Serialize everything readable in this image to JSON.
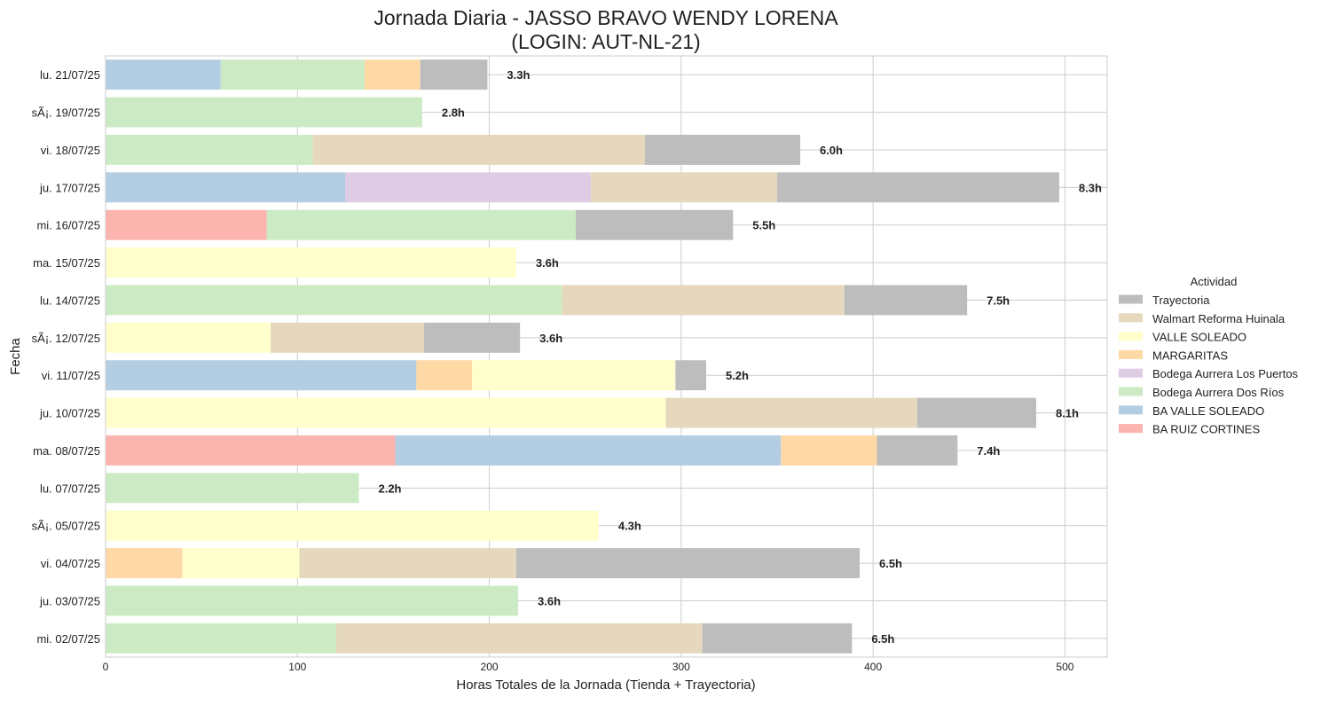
{
  "chart_data": {
    "type": "bar",
    "orientation": "horizontal",
    "stacked": true,
    "title_line1": "Jornada Diaria - JASSO BRAVO WENDY LORENA",
    "title_line2": "(LOGIN: AUT-NL-21)",
    "xlabel": "Horas Totales de la Jornada (Tienda + Trayectoria)",
    "ylabel": "Fecha",
    "xlim": [
      0,
      522
    ],
    "xticks": [
      0,
      100,
      200,
      300,
      400,
      500
    ],
    "grid": true,
    "legend": {
      "title": "Actividad",
      "position": "right",
      "entries": [
        "Trayectoria",
        "Walmart Reforma Huinala",
        "VALLE SOLEADO",
        "MARGARITAS",
        "Bodega Aurrera Los Puertos",
        "Bodega Aurrera Dos Ríos",
        "BA VALLE SOLEADO",
        "BA RUIZ CORTINES"
      ]
    },
    "colors": {
      "BA RUIZ CORTINES": "#fbb4ae",
      "BA VALLE SOLEADO": "#b3cde3",
      "Bodega Aurrera Dos Ríos": "#ccebc5",
      "Bodega Aurrera Los Puertos": "#decbe4",
      "MARGARITAS": "#fed9a6",
      "VALLE SOLEADO": "#ffffcc",
      "Walmart Reforma Huinala": "#e5d8bd",
      "Trayectoria": "#bdbdbd"
    },
    "rows": [
      {
        "date": "lu. 21/07/25",
        "label": "3.3h",
        "segments": [
          {
            "activity": "BA VALLE SOLEADO",
            "value": 60
          },
          {
            "activity": "Bodega Aurrera Dos Ríos",
            "value": 75
          },
          {
            "activity": "MARGARITAS",
            "value": 29
          },
          {
            "activity": "Trayectoria",
            "value": 35
          }
        ]
      },
      {
        "date": "sÃ¡. 19/07/25",
        "label": "2.8h",
        "segments": [
          {
            "activity": "Bodega Aurrera Dos Ríos",
            "value": 165
          }
        ]
      },
      {
        "date": "vi. 18/07/25",
        "label": "6.0h",
        "segments": [
          {
            "activity": "Bodega Aurrera Dos Ríos",
            "value": 108
          },
          {
            "activity": "Walmart Reforma Huinala",
            "value": 173
          },
          {
            "activity": "Trayectoria",
            "value": 81
          }
        ]
      },
      {
        "date": "ju. 17/07/25",
        "label": "8.3h",
        "segments": [
          {
            "activity": "BA VALLE SOLEADO",
            "value": 125
          },
          {
            "activity": "Bodega Aurrera Los Puertos",
            "value": 128
          },
          {
            "activity": "Walmart Reforma Huinala",
            "value": 97
          },
          {
            "activity": "Trayectoria",
            "value": 147
          }
        ]
      },
      {
        "date": "mi. 16/07/25",
        "label": "5.5h",
        "segments": [
          {
            "activity": "BA RUIZ CORTINES",
            "value": 84
          },
          {
            "activity": "Bodega Aurrera Dos Ríos",
            "value": 161
          },
          {
            "activity": "Trayectoria",
            "value": 82
          }
        ]
      },
      {
        "date": "ma. 15/07/25",
        "label": "3.6h",
        "segments": [
          {
            "activity": "VALLE SOLEADO",
            "value": 214
          }
        ]
      },
      {
        "date": "lu. 14/07/25",
        "label": "7.5h",
        "segments": [
          {
            "activity": "Bodega Aurrera Dos Ríos",
            "value": 238
          },
          {
            "activity": "Walmart Reforma Huinala",
            "value": 147
          },
          {
            "activity": "Trayectoria",
            "value": 64
          }
        ]
      },
      {
        "date": "sÃ¡. 12/07/25",
        "label": "3.6h",
        "segments": [
          {
            "activity": "VALLE SOLEADO",
            "value": 86
          },
          {
            "activity": "Walmart Reforma Huinala",
            "value": 80
          },
          {
            "activity": "Trayectoria",
            "value": 50
          }
        ]
      },
      {
        "date": "vi. 11/07/25",
        "label": "5.2h",
        "segments": [
          {
            "activity": "BA VALLE SOLEADO",
            "value": 162
          },
          {
            "activity": "MARGARITAS",
            "value": 29
          },
          {
            "activity": "VALLE SOLEADO",
            "value": 106
          },
          {
            "activity": "Trayectoria",
            "value": 16
          }
        ]
      },
      {
        "date": "ju. 10/07/25",
        "label": "8.1h",
        "segments": [
          {
            "activity": "VALLE SOLEADO",
            "value": 292
          },
          {
            "activity": "Walmart Reforma Huinala",
            "value": 131
          },
          {
            "activity": "Trayectoria",
            "value": 62
          }
        ]
      },
      {
        "date": "ma. 08/07/25",
        "label": "7.4h",
        "segments": [
          {
            "activity": "BA RUIZ CORTINES",
            "value": 151
          },
          {
            "activity": "BA VALLE SOLEADO",
            "value": 201
          },
          {
            "activity": "MARGARITAS",
            "value": 50
          },
          {
            "activity": "Trayectoria",
            "value": 42
          }
        ]
      },
      {
        "date": "lu. 07/07/25",
        "label": "2.2h",
        "segments": [
          {
            "activity": "Bodega Aurrera Dos Ríos",
            "value": 132
          }
        ]
      },
      {
        "date": "sÃ¡. 05/07/25",
        "label": "4.3h",
        "segments": [
          {
            "activity": "VALLE SOLEADO",
            "value": 257
          }
        ]
      },
      {
        "date": "vi. 04/07/25",
        "label": "6.5h",
        "segments": [
          {
            "activity": "MARGARITAS",
            "value": 40
          },
          {
            "activity": "VALLE SOLEADO",
            "value": 61
          },
          {
            "activity": "Walmart Reforma Huinala",
            "value": 113
          },
          {
            "activity": "Trayectoria",
            "value": 179
          }
        ]
      },
      {
        "date": "ju. 03/07/25",
        "label": "3.6h",
        "segments": [
          {
            "activity": "Bodega Aurrera Dos Ríos",
            "value": 215
          }
        ]
      },
      {
        "date": "mi. 02/07/25",
        "label": "6.5h",
        "segments": [
          {
            "activity": "Bodega Aurrera Dos Ríos",
            "value": 120
          },
          {
            "activity": "Walmart Reforma Huinala",
            "value": 191
          },
          {
            "activity": "Trayectoria",
            "value": 78
          }
        ]
      }
    ]
  }
}
